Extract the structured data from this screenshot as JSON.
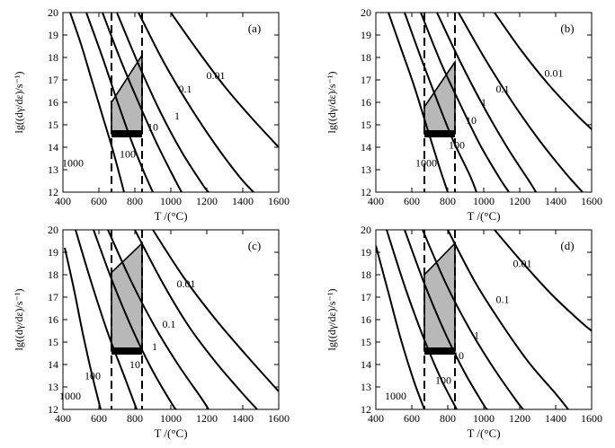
{
  "colors": {
    "curve": "#000000",
    "shade": "#b8b8b8",
    "bar": "#000000"
  },
  "chart_data": [
    {
      "type": "line",
      "panel_label": "(a)",
      "xlabel": "T /(°C)",
      "ylabel": "lg((dγ/dε)/s⁻¹)",
      "xlim": [
        400,
        1600
      ],
      "ylim": [
        12,
        20
      ],
      "x_ticks": [
        "400",
        "600",
        "800",
        "1000",
        "1200",
        "1400",
        "1600"
      ],
      "y_ticks": [
        "12",
        "13",
        "14",
        "15",
        "16",
        "17",
        "18",
        "19",
        "20"
      ],
      "series": [
        {
          "name": "1000",
          "points": [
            [
              440,
              20
            ],
            [
              500,
              18.6
            ],
            [
              560,
              17.0
            ],
            [
              620,
              15.4
            ],
            [
              680,
              13.8
            ],
            [
              740,
              12.0
            ]
          ],
          "label_at": [
            455,
            13.3
          ]
        },
        {
          "name": "100",
          "points": [
            [
              530,
              20
            ],
            [
              620,
              18.0
            ],
            [
              700,
              16.1
            ],
            [
              780,
              14.3
            ],
            [
              850,
              12.9
            ],
            [
              900,
              12.0
            ]
          ],
          "label_at": [
            760,
            13.7
          ]
        },
        {
          "name": "10",
          "points": [
            [
              620,
              20
            ],
            [
              720,
              17.9
            ],
            [
              820,
              16.0
            ],
            [
              920,
              14.2
            ],
            [
              1020,
              12.6
            ],
            [
              1060,
              12.0
            ]
          ],
          "label_at": [
            900,
            14.9
          ]
        },
        {
          "name": "1",
          "points": [
            [
              700,
              20
            ],
            [
              820,
              17.7
            ],
            [
              940,
              15.6
            ],
            [
              1060,
              13.8
            ],
            [
              1180,
              12.3
            ],
            [
              1210,
              12.0
            ]
          ],
          "label_at": [
            1035,
            15.4
          ]
        },
        {
          "name": "0.1",
          "points": [
            [
              820,
              20
            ],
            [
              960,
              17.8
            ],
            [
              1100,
              15.9
            ],
            [
              1240,
              14.2
            ],
            [
              1380,
              12.7
            ],
            [
              1460,
              12.0
            ]
          ],
          "label_at": [
            1080,
            16.6
          ]
        },
        {
          "name": "0.01",
          "points": [
            [
              1000,
              20
            ],
            [
              1150,
              18.3
            ],
            [
              1300,
              16.7
            ],
            [
              1450,
              15.3
            ],
            [
              1600,
              14.0
            ]
          ],
          "label_at": [
            1250,
            17.2
          ]
        }
      ],
      "window": {
        "x_min": 670,
        "x_max": 840,
        "y_bottom": 14.6,
        "y_left_top": 16.0,
        "y_right_top": 18.1
      }
    },
    {
      "type": "line",
      "panel_label": "(b)",
      "xlabel": "T /(°C)",
      "ylabel": "lg((dγ/dε)/s⁻¹)",
      "xlim": [
        400,
        1600
      ],
      "ylim": [
        12,
        20
      ],
      "x_ticks": [
        "400",
        "600",
        "800",
        "1000",
        "1200",
        "1400",
        "1600"
      ],
      "y_ticks": [
        "12",
        "13",
        "14",
        "15",
        "16",
        "17",
        "18",
        "19",
        "20"
      ],
      "series": [
        {
          "name": "1000",
          "points": [
            [
              470,
              20
            ],
            [
              540,
              18.4
            ],
            [
              610,
              16.8
            ],
            [
              680,
              15.0
            ],
            [
              750,
              13.2
            ],
            [
              800,
              12.0
            ]
          ],
          "label_at": [
            680,
            13.3
          ]
        },
        {
          "name": "100",
          "points": [
            [
              560,
              20
            ],
            [
              650,
              18.0
            ],
            [
              740,
              16.1
            ],
            [
              830,
              14.3
            ],
            [
              920,
              12.8
            ],
            [
              960,
              12.0
            ]
          ],
          "label_at": [
            850,
            14.1
          ]
        },
        {
          "name": "10",
          "points": [
            [
              650,
              20
            ],
            [
              760,
              17.8
            ],
            [
              870,
              15.9
            ],
            [
              980,
              14.1
            ],
            [
              1090,
              12.6
            ],
            [
              1140,
              12.0
            ]
          ],
          "label_at": [
            930,
            15.2
          ]
        },
        {
          "name": "1",
          "points": [
            [
              740,
              20
            ],
            [
              870,
              17.8
            ],
            [
              1000,
              15.8
            ],
            [
              1130,
              14.0
            ],
            [
              1260,
              12.4
            ],
            [
              1290,
              12.0
            ]
          ],
          "label_at": [
            1000,
            16.0
          ]
        },
        {
          "name": "0.1",
          "points": [
            [
              860,
              20
            ],
            [
              1010,
              17.9
            ],
            [
              1160,
              16.0
            ],
            [
              1310,
              14.3
            ],
            [
              1460,
              12.8
            ],
            [
              1550,
              12.0
            ]
          ],
          "label_at": [
            1105,
            16.6
          ]
        },
        {
          "name": "0.01",
          "points": [
            [
              1060,
              20
            ],
            [
              1210,
              18.3
            ],
            [
              1360,
              16.8
            ],
            [
              1510,
              15.5
            ],
            [
              1600,
              14.8
            ]
          ],
          "label_at": [
            1390,
            17.3
          ]
        }
      ],
      "window": {
        "x_min": 670,
        "x_max": 840,
        "y_bottom": 14.6,
        "y_left_top": 15.8,
        "y_right_top": 17.8
      }
    },
    {
      "type": "line",
      "panel_label": "(c)",
      "xlabel": "T /(°C)",
      "ylabel": "lg((dγ/dε)/s⁻¹)",
      "xlim": [
        400,
        1600
      ],
      "ylim": [
        12,
        20
      ],
      "x_ticks": [
        "400",
        "600",
        "800",
        "1000",
        "1200",
        "1400",
        "1600"
      ],
      "y_ticks": [
        "12",
        "13",
        "14",
        "15",
        "16",
        "17",
        "18",
        "19",
        "20"
      ],
      "series": [
        {
          "name": "1000",
          "points": [
            [
              410,
              19.2
            ],
            [
              460,
              17.4
            ],
            [
              510,
              15.4
            ],
            [
              560,
              13.6
            ],
            [
              610,
              12.0
            ]
          ],
          "label_at": [
            440,
            12.6
          ]
        },
        {
          "name": "100",
          "points": [
            [
              470,
              20
            ],
            [
              560,
              17.6
            ],
            [
              650,
              15.4
            ],
            [
              740,
              13.5
            ],
            [
              810,
              12.0
            ]
          ],
          "label_at": [
            565,
            13.5
          ]
        },
        {
          "name": "10",
          "points": [
            [
              570,
              20
            ],
            [
              680,
              17.6
            ],
            [
              790,
              15.5
            ],
            [
              900,
              13.7
            ],
            [
              1010,
              12.2
            ],
            [
              1030,
              12.0
            ]
          ],
          "label_at": [
            800,
            14.0
          ]
        },
        {
          "name": "1",
          "points": [
            [
              650,
              20
            ],
            [
              780,
              17.7
            ],
            [
              910,
              15.7
            ],
            [
              1040,
              14.0
            ],
            [
              1170,
              12.5
            ],
            [
              1210,
              12.0
            ]
          ],
          "label_at": [
            910,
            14.8
          ]
        },
        {
          "name": "0.1",
          "points": [
            [
              800,
              20
            ],
            [
              950,
              17.7
            ],
            [
              1100,
              15.7
            ],
            [
              1250,
              14.1
            ],
            [
              1400,
              12.7
            ],
            [
              1480,
              12.0
            ]
          ],
          "label_at": [
            990,
            15.8
          ]
        },
        {
          "name": "0.01",
          "points": [
            [
              900,
              20
            ],
            [
              1070,
              17.9
            ],
            [
              1240,
              16.1
            ],
            [
              1410,
              14.5
            ],
            [
              1600,
              12.8
            ]
          ],
          "label_at": [
            1085,
            17.6
          ]
        }
      ],
      "window": {
        "x_min": 670,
        "x_max": 840,
        "y_bottom": 14.6,
        "y_left_top": 18.1,
        "y_right_top": 19.4
      }
    },
    {
      "type": "line",
      "panel_label": "(d)",
      "xlabel": "T /(°C)",
      "ylabel": "lg((dγ/dε)/s⁻¹)",
      "xlim": [
        400,
        1600
      ],
      "ylim": [
        12,
        20
      ],
      "x_ticks": [
        "400",
        "600",
        "800",
        "1000",
        "1200",
        "1400",
        "1600"
      ],
      "y_ticks": [
        "12",
        "13",
        "14",
        "15",
        "16",
        "17",
        "18",
        "19",
        "20"
      ],
      "series": [
        {
          "name": "1000",
          "points": [
            [
              400,
              19.3
            ],
            [
              470,
              17.2
            ],
            [
              540,
              15.1
            ],
            [
              610,
              13.3
            ],
            [
              670,
              12.0
            ]
          ],
          "label_at": [
            510,
            12.6
          ]
        },
        {
          "name": "100",
          "points": [
            [
              460,
              20
            ],
            [
              560,
              17.5
            ],
            [
              660,
              15.3
            ],
            [
              760,
              13.4
            ],
            [
              850,
              12.0
            ]
          ],
          "label_at": [
            775,
            13.3
          ]
        },
        {
          "name": "10",
          "points": [
            [
              560,
              20
            ],
            [
              670,
              17.6
            ],
            [
              780,
              15.5
            ],
            [
              890,
              13.7
            ],
            [
              1000,
              12.2
            ],
            [
              1020,
              12.0
            ]
          ],
          "label_at": [
            860,
            14.4
          ]
        },
        {
          "name": "1",
          "points": [
            [
              660,
              20
            ],
            [
              790,
              17.6
            ],
            [
              920,
              15.6
            ],
            [
              1050,
              13.9
            ],
            [
              1180,
              12.4
            ],
            [
              1220,
              12.0
            ]
          ],
          "label_at": [
            960,
            15.3
          ]
        },
        {
          "name": "0.1",
          "points": [
            [
              800,
              20
            ],
            [
              950,
              17.7
            ],
            [
              1100,
              15.8
            ],
            [
              1250,
              14.1
            ],
            [
              1400,
              12.7
            ],
            [
              1470,
              12.0
            ]
          ],
          "label_at": [
            1105,
            16.9
          ]
        },
        {
          "name": "0.01",
          "points": [
            [
              1060,
              20
            ],
            [
              1220,
              18.5
            ],
            [
              1380,
              17.1
            ],
            [
              1540,
              15.9
            ],
            [
              1600,
              15.5
            ]
          ],
          "label_at": [
            1215,
            18.5
          ]
        }
      ],
      "window": {
        "x_min": 670,
        "x_max": 840,
        "y_bottom": 14.6,
        "y_left_top": 18.0,
        "y_right_top": 19.4
      }
    }
  ]
}
